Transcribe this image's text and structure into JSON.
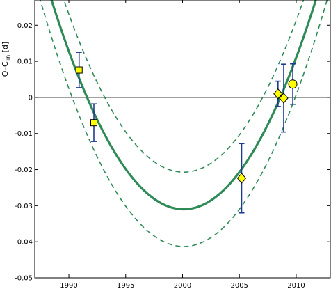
{
  "chart_data": {
    "type": "scatter",
    "title": "",
    "xlabel": "",
    "ylabel": "O–C",
    "ylabel_sub": "lin",
    "ylabel_unit": " [d]",
    "xlim": [
      1987,
      2013
    ],
    "ylim": [
      -0.05,
      0.027
    ],
    "xticks": [
      1990,
      1995,
      2000,
      2005,
      2010
    ],
    "yticks": [
      -0.05,
      -0.04,
      -0.03,
      -0.02,
      -0.01,
      0,
      0.01,
      0.02
    ],
    "ytick_labels": [
      "-0.05",
      "-0.04",
      "-0.03",
      "-0.02",
      "-0.01",
      "0",
      "0.01",
      "0.02"
    ],
    "grid": false,
    "zero_line": 0,
    "fit": {
      "name": "",
      "vertex_x": 2000.1,
      "vertex_y": -0.031,
      "curvature": 0.000429,
      "color": "#2e8b57"
    },
    "confidence_band": {
      "upper_vertex_y": -0.0207,
      "lower_vertex_y": -0.0413,
      "color": "#2e8b57",
      "style": "dashed"
    },
    "series": [
      {
        "marker": "square",
        "color": "#ffff00",
        "points": [
          {
            "x": 1990.9,
            "y": 0.0076,
            "err": 0.0049
          },
          {
            "x": 1992.2,
            "y": -0.007,
            "err": 0.0052
          }
        ]
      },
      {
        "marker": "diamond",
        "color": "#ffff00",
        "points": [
          {
            "x": 2005.2,
            "y": -0.0224,
            "err": 0.0096
          },
          {
            "x": 2008.4,
            "y": 0.001,
            "err": 0.0035
          },
          {
            "x": 2008.9,
            "y": -0.0002,
            "err": 0.0094
          }
        ]
      },
      {
        "marker": "circle",
        "color": "#ffff00",
        "points": [
          {
            "x": 2009.7,
            "y": 0.0037,
            "err": 0.0056
          }
        ]
      }
    ],
    "errorbar_color": "#1f3a93"
  }
}
